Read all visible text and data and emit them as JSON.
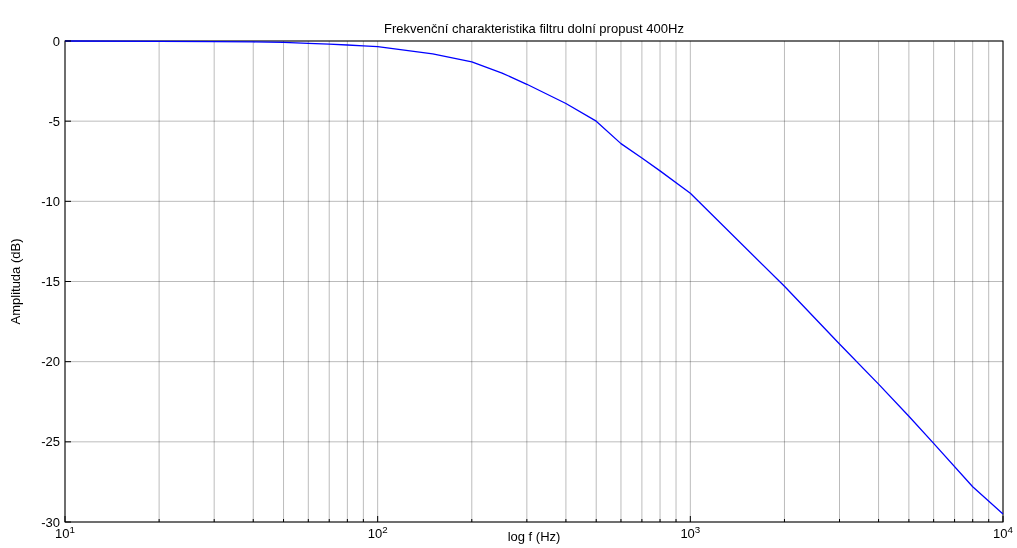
{
  "chart_data": {
    "type": "line",
    "title": "Frekvenční charakteristika filtru dolní propust 400Hz",
    "xlabel": "log f (Hz)",
    "ylabel": "Amplituda (dB)",
    "log": "x",
    "grid": true,
    "xlim": [
      10,
      10000
    ],
    "ylim": [
      -30,
      0
    ],
    "xticks": [
      {
        "value": 10,
        "label": "10$^{1}$"
      },
      {
        "value": 20,
        "label": null
      },
      {
        "value": 30,
        "label": null
      },
      {
        "value": 40,
        "label": null
      },
      {
        "value": 50,
        "label": null
      },
      {
        "value": 60,
        "label": null
      },
      {
        "value": 70,
        "label": null
      },
      {
        "value": 80,
        "label": null
      },
      {
        "value": 90,
        "label": null
      },
      {
        "value": 100,
        "label": "10$^{2}$"
      },
      {
        "value": 200,
        "label": null
      },
      {
        "value": 300,
        "label": null
      },
      {
        "value": 400,
        "label": null
      },
      {
        "value": 500,
        "label": null
      },
      {
        "value": 600,
        "label": null
      },
      {
        "value": 700,
        "label": null
      },
      {
        "value": 800,
        "label": null
      },
      {
        "value": 900,
        "label": null
      },
      {
        "value": 1000,
        "label": "10$^{3}$"
      },
      {
        "value": 2000,
        "label": null
      },
      {
        "value": 3000,
        "label": null
      },
      {
        "value": 4000,
        "label": null
      },
      {
        "value": 5000,
        "label": null
      },
      {
        "value": 6000,
        "label": null
      },
      {
        "value": 7000,
        "label": null
      },
      {
        "value": 8000,
        "label": null
      },
      {
        "value": 9000,
        "label": null
      },
      {
        "value": 10000,
        "label": "10$^{4}$"
      }
    ],
    "yticks": [
      -30,
      -25,
      -20,
      -15,
      -10,
      -5,
      0
    ],
    "series": [
      {
        "color": "#0000ff",
        "x": [
          10,
          20,
          30,
          40,
          50,
          60,
          70,
          80,
          90,
          100,
          150,
          200,
          250,
          300,
          400,
          500,
          600,
          700,
          800,
          1000,
          2000,
          3000,
          4000,
          5000,
          6000,
          8000,
          10000
        ],
        "values": [
          0,
          -0.02,
          -0.04,
          -0.06,
          -0.08,
          -0.15,
          -0.2,
          -0.25,
          -0.3,
          -0.35,
          -0.8,
          -1.3,
          -2.0,
          -2.7,
          -3.9,
          -5.0,
          -6.4,
          -7.3,
          -8.1,
          -9.5,
          -15.3,
          -18.9,
          -21.4,
          -23.4,
          -25.1,
          -27.8,
          -29.5
        ]
      }
    ]
  }
}
